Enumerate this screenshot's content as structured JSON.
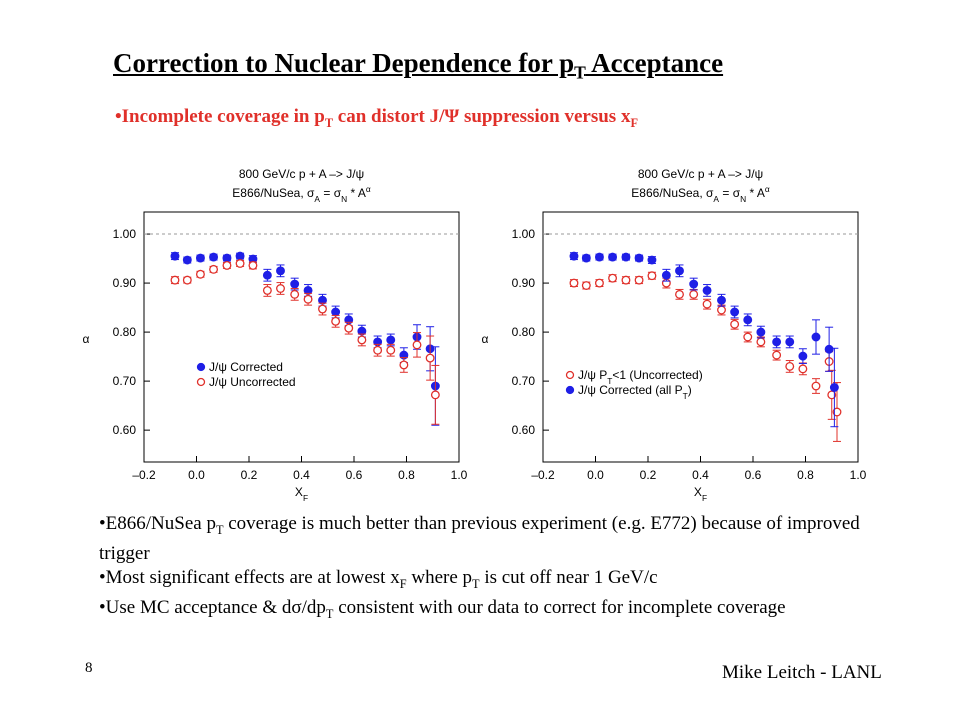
{
  "title": [
    "Correction to Nuclear Dependence for p",
    {
      "text": "T",
      "script": "sub"
    },
    " Acceptance"
  ],
  "subtitle": [
    "•Incomplete coverage in p",
    {
      "text": "T",
      "script": "sub"
    },
    " can distort J/Ψ suppression versus x",
    {
      "text": "F",
      "script": "sub"
    }
  ],
  "bullets": [
    [
      "•E866/NuSea p",
      {
        "text": "T",
        "script": "sub"
      },
      " coverage is much better than previous experiment (e.g. E772) because of improved trigger"
    ],
    [
      "•Most significant effects are at lowest x",
      {
        "text": "F",
        "script": "sub"
      },
      " where p",
      {
        "text": "T",
        "script": "sub"
      },
      " is cut off near 1 GeV/c"
    ],
    [
      "•Use MC acceptance & dσ/dp",
      {
        "text": "T",
        "script": "sub"
      },
      " consistent with our data to correct for incomplete coverage"
    ]
  ],
  "page_number": "8",
  "footer": "Mike Leitch - LANL",
  "chart_data": [
    {
      "type": "scatter",
      "title": "800 GeV/c p + A –> J/ψ",
      "subtitle": [
        "E866/NuSea, σ",
        {
          "text": "A",
          "script": "sub"
        },
        " = σ",
        {
          "text": "N",
          "script": "sub"
        },
        " * A",
        {
          "text": "α",
          "script": "sup"
        }
      ],
      "xlabel": [
        "X",
        {
          "text": "F",
          "script": "sub"
        }
      ],
      "ylabel": "α",
      "xlim": [
        -0.2,
        1.0
      ],
      "ylim": [
        0.535,
        1.045
      ],
      "xticks": [
        {
          "value": -0.2,
          "label": "–0.2"
        },
        {
          "value": 0,
          "label": "0.0"
        },
        0.2,
        0.4,
        0.6,
        0.8,
        {
          "value": 1,
          "label": "1.0"
        }
      ],
      "yticks": [
        {
          "value": 0.6,
          "label": "0.60"
        },
        {
          "value": 0.7,
          "label": "0.70"
        },
        {
          "value": 0.8,
          "label": "0.80"
        },
        {
          "value": 0.9,
          "label": "0.90"
        },
        {
          "value": 1,
          "label": "1.00"
        }
      ],
      "reference_line": 1,
      "legend": "lower left",
      "series": [
        {
          "name": "J/ψ Corrected",
          "color": "#1f1fe6",
          "filled": true,
          "x": [
            -0.082,
            -0.035,
            0.015,
            0.065,
            0.116,
            0.166,
            0.215,
            0.27,
            0.32,
            0.374,
            0.425,
            0.48,
            0.53,
            0.58,
            0.63,
            0.69,
            0.74,
            0.79,
            0.84,
            0.89,
            0.91
          ],
          "values": [
            0.955,
            0.947,
            0.951,
            0.953,
            0.951,
            0.955,
            0.949,
            0.916,
            0.925,
            0.898,
            0.885,
            0.865,
            0.841,
            0.825,
            0.802,
            0.78,
            0.784,
            0.753,
            0.79,
            0.766,
            0.69
          ],
          "errors": [
            0.007,
            0.006,
            0.006,
            0.006,
            0.006,
            0.006,
            0.007,
            0.012,
            0.012,
            0.012,
            0.012,
            0.012,
            0.012,
            0.012,
            0.012,
            0.012,
            0.012,
            0.015,
            0.025,
            0.045,
            0.08
          ]
        },
        {
          "name": "J/ψ Uncorrected",
          "color": "#e0302a",
          "filled": false,
          "x": [
            -0.082,
            -0.035,
            0.015,
            0.065,
            0.116,
            0.166,
            0.215,
            0.27,
            0.32,
            0.374,
            0.425,
            0.48,
            0.53,
            0.58,
            0.63,
            0.69,
            0.74,
            0.79,
            0.84,
            0.89,
            0.91
          ],
          "values": [
            0.906,
            0.906,
            0.918,
            0.928,
            0.936,
            0.94,
            0.936,
            0.885,
            0.889,
            0.877,
            0.867,
            0.847,
            0.822,
            0.808,
            0.784,
            0.763,
            0.763,
            0.733,
            0.774,
            0.747,
            0.672
          ],
          "errors": [
            0.007,
            0.006,
            0.006,
            0.006,
            0.006,
            0.006,
            0.007,
            0.012,
            0.012,
            0.012,
            0.012,
            0.012,
            0.012,
            0.012,
            0.012,
            0.012,
            0.012,
            0.015,
            0.025,
            0.045,
            0.06
          ]
        }
      ]
    },
    {
      "type": "scatter",
      "title": "800 GeV/c p + A –> J/ψ",
      "subtitle": [
        "E866/NuSea, σ",
        {
          "text": "A",
          "script": "sub"
        },
        " = σ",
        {
          "text": "N",
          "script": "sub"
        },
        " * A",
        {
          "text": "α",
          "script": "sup"
        }
      ],
      "xlabel": [
        "X",
        {
          "text": "F",
          "script": "sub"
        }
      ],
      "ylabel": "α",
      "xlim": [
        -0.2,
        1.0
      ],
      "ylim": [
        0.535,
        1.045
      ],
      "xticks": [
        {
          "value": -0.2,
          "label": "–0.2"
        },
        {
          "value": 0,
          "label": "0.0"
        },
        0.2,
        0.4,
        0.6,
        0.8,
        {
          "value": 1,
          "label": "1.0"
        }
      ],
      "yticks": [
        {
          "value": 0.6,
          "label": "0.60"
        },
        {
          "value": 0.7,
          "label": "0.70"
        },
        {
          "value": 0.8,
          "label": "0.80"
        },
        {
          "value": 0.9,
          "label": "0.90"
        },
        {
          "value": 1,
          "label": "1.00"
        }
      ],
      "reference_line": 1,
      "legend": "lower left",
      "series": [
        {
          "name": [
            "J/ψ P",
            {
              "text": "T",
              "script": "sub"
            },
            "<1 (Uncorrected)"
          ],
          "color": "#e0302a",
          "filled": false,
          "x": [
            -0.082,
            -0.035,
            0.015,
            0.065,
            0.116,
            0.166,
            0.215,
            0.27,
            0.32,
            0.374,
            0.425,
            0.48,
            0.53,
            0.58,
            0.63,
            0.69,
            0.74,
            0.79,
            0.84,
            0.89,
            0.9,
            0.92
          ],
          "values": [
            0.9,
            0.895,
            0.9,
            0.91,
            0.906,
            0.906,
            0.915,
            0.9,
            0.877,
            0.877,
            0.857,
            0.845,
            0.816,
            0.79,
            0.78,
            0.753,
            0.73,
            0.725,
            0.69,
            0.74,
            0.672,
            0.637
          ],
          "errors": [
            0.007,
            0.007,
            0.007,
            0.007,
            0.007,
            0.007,
            0.007,
            0.01,
            0.01,
            0.01,
            0.01,
            0.01,
            0.01,
            0.01,
            0.01,
            0.01,
            0.012,
            0.012,
            0.015,
            0.02,
            0.05,
            0.06
          ]
        },
        {
          "name": [
            "J/ψ Corrected (all P",
            {
              "text": "T",
              "script": "sub"
            },
            ")"
          ],
          "color": "#1f1fe6",
          "filled": true,
          "x": [
            -0.082,
            -0.035,
            0.015,
            0.065,
            0.116,
            0.166,
            0.215,
            0.27,
            0.32,
            0.374,
            0.425,
            0.48,
            0.53,
            0.58,
            0.63,
            0.69,
            0.74,
            0.79,
            0.84,
            0.89,
            0.91
          ],
          "values": [
            0.955,
            0.951,
            0.953,
            0.953,
            0.953,
            0.951,
            0.947,
            0.916,
            0.925,
            0.898,
            0.885,
            0.865,
            0.841,
            0.825,
            0.8,
            0.78,
            0.78,
            0.751,
            0.79,
            0.765,
            0.687
          ],
          "errors": [
            0.007,
            0.006,
            0.006,
            0.006,
            0.006,
            0.006,
            0.007,
            0.012,
            0.012,
            0.012,
            0.012,
            0.012,
            0.012,
            0.012,
            0.012,
            0.012,
            0.012,
            0.015,
            0.035,
            0.045,
            0.08
          ]
        }
      ]
    }
  ]
}
